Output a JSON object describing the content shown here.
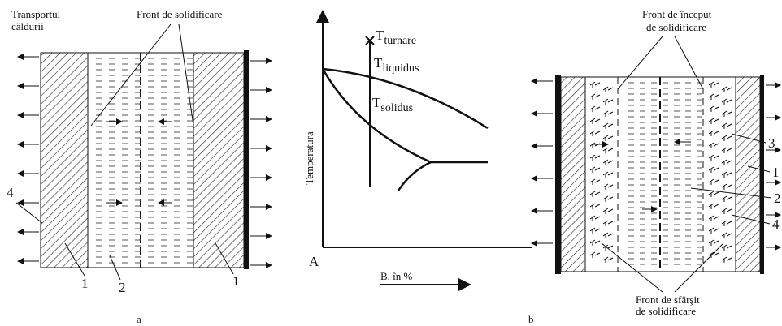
{
  "panel_a": {
    "heat_transport": [
      "Transportul",
      "căldurii"
    ],
    "front_label": "Front de solidificare",
    "labels": [
      "4",
      "1",
      "2",
      "1"
    ],
    "caption": "a"
  },
  "phase_diagram": {
    "pour": {
      "symbol": "T",
      "subscript": "turnare"
    },
    "liquidus": {
      "symbol": "T",
      "subscript": "liquidus"
    },
    "solidus": {
      "symbol": "T",
      "subscript": "solidus"
    },
    "y_axis_label": "Temperatura",
    "origin_label": "A",
    "x_axis_label": "B, în %",
    "caption": "b"
  },
  "panel_b": {
    "start_front_label": [
      "Front de început",
      "de solidificare"
    ],
    "end_front_label": [
      "Front de sfârşit",
      "de solidificare"
    ],
    "labels": [
      "3",
      "1",
      "2",
      "4"
    ]
  }
}
